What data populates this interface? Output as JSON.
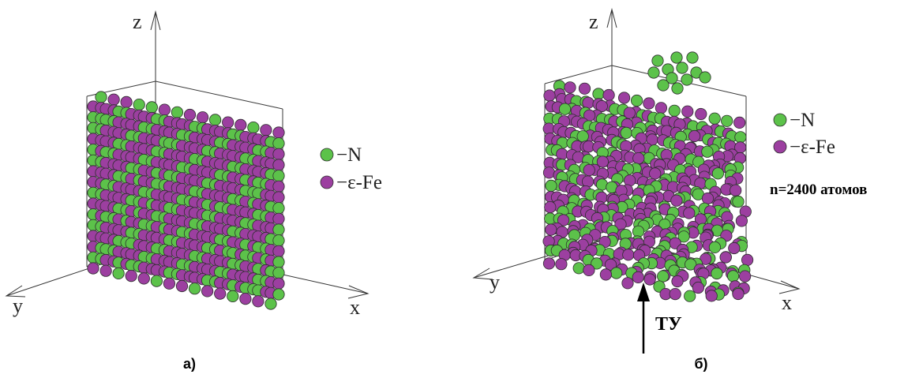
{
  "colors": {
    "nitrogen": "#5cc24a",
    "iron": "#9c3fa0",
    "outline": "#2e2e2e"
  },
  "panels": [
    {
      "id": "a",
      "axes": {
        "z": "z",
        "y": "y",
        "x": "x"
      },
      "legend": [
        {
          "symbol": "nitrogen",
          "label": "−N"
        },
        {
          "symbol": "iron",
          "label": "−ε-Fe"
        }
      ],
      "caption": "а)"
    },
    {
      "id": "b",
      "axes": {
        "z": "z",
        "y": "y",
        "x": "x"
      },
      "legend": [
        {
          "symbol": "nitrogen",
          "label": "−N"
        },
        {
          "symbol": "iron",
          "label": "−ε-Fe"
        }
      ],
      "atom_count": "n=2400 атомов",
      "arrow_label": "ТУ",
      "caption": "б)"
    }
  ]
}
